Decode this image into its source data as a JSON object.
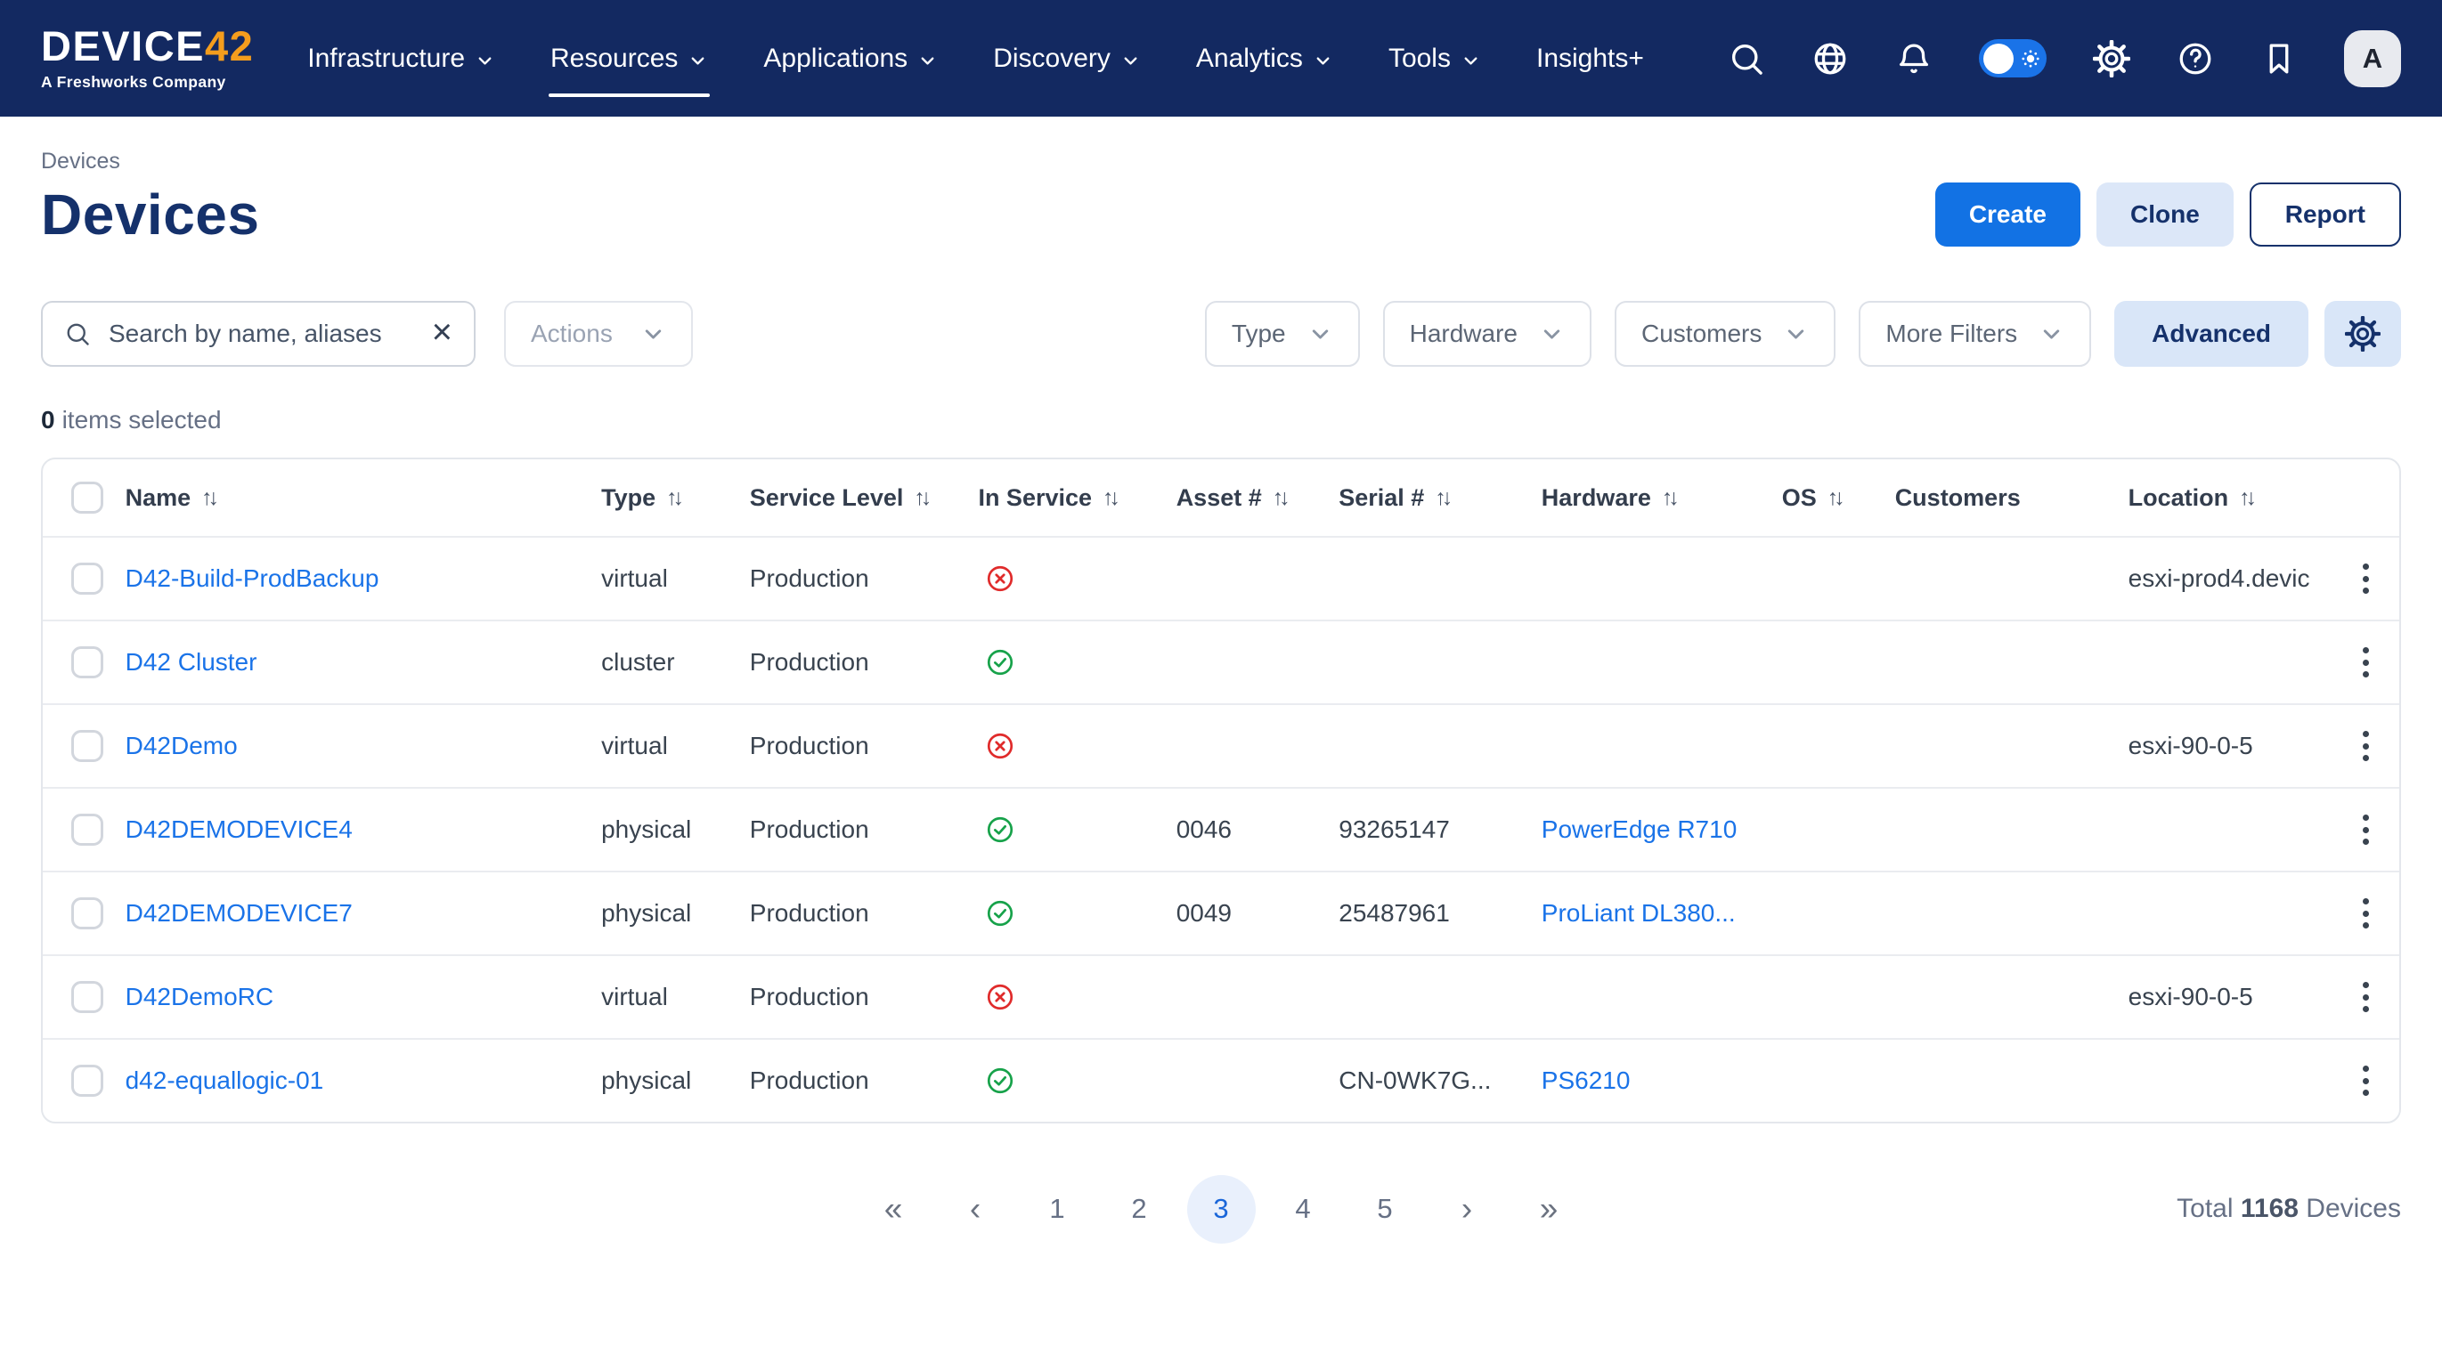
{
  "nav": {
    "brand": {
      "name": "DEVIC",
      "name2": "E",
      "accent": "42",
      "tagline": "A Freshworks Company"
    },
    "items": [
      {
        "label": "Infrastructure",
        "caret": true,
        "active": false
      },
      {
        "label": "Resources",
        "caret": true,
        "active": true
      },
      {
        "label": "Applications",
        "caret": true,
        "active": false
      },
      {
        "label": "Discovery",
        "caret": true,
        "active": false
      },
      {
        "label": "Analytics",
        "caret": true,
        "active": false
      },
      {
        "label": "Tools",
        "caret": true,
        "active": false
      },
      {
        "label": "Insights+",
        "caret": false,
        "active": false
      }
    ],
    "icons": [
      "search-icon",
      "globe-icon",
      "notifications-icon",
      "theme-toggle",
      "settings-icon",
      "help-icon",
      "bookmark-icon"
    ],
    "avatar": "A"
  },
  "breadcrumb": "Devices",
  "page": {
    "title": "Devices"
  },
  "actions": {
    "create": "Create",
    "clone": "Clone",
    "report": "Report"
  },
  "toolbar": {
    "search_placeholder": "Search by name, aliases",
    "actions_label": "Actions",
    "filters": [
      "Type",
      "Hardware",
      "Customers",
      "More Filters"
    ],
    "advanced_label": "Advanced"
  },
  "selection": {
    "count": "0",
    "label": "items selected"
  },
  "table": {
    "columns": [
      {
        "key": "name",
        "label": "Name",
        "sortable": true
      },
      {
        "key": "type",
        "label": "Type",
        "sortable": true
      },
      {
        "key": "service_level",
        "label": "Service Level",
        "sortable": true
      },
      {
        "key": "in_service",
        "label": "In Service",
        "sortable": true
      },
      {
        "key": "asset",
        "label": "Asset #",
        "sortable": true
      },
      {
        "key": "serial",
        "label": "Serial #",
        "sortable": true
      },
      {
        "key": "hardware",
        "label": "Hardware",
        "sortable": true
      },
      {
        "key": "os",
        "label": "OS",
        "sortable": true
      },
      {
        "key": "customers",
        "label": "Customers",
        "sortable": false
      },
      {
        "key": "location",
        "label": "Location",
        "sortable": true
      }
    ],
    "rows": [
      {
        "name": "D42-Build-ProdBackup",
        "type": "virtual",
        "service_level": "Production",
        "in_service": false,
        "asset": "",
        "serial": "",
        "hardware": "",
        "os": "",
        "customers": "",
        "location": "esxi-prod4.devic"
      },
      {
        "name": "D42 Cluster",
        "type": "cluster",
        "service_level": "Production",
        "in_service": true,
        "asset": "",
        "serial": "",
        "hardware": "",
        "os": "",
        "customers": "",
        "location": ""
      },
      {
        "name": "D42Demo",
        "type": "virtual",
        "service_level": "Production",
        "in_service": false,
        "asset": "",
        "serial": "",
        "hardware": "",
        "os": "",
        "customers": "",
        "location": "esxi-90-0-5"
      },
      {
        "name": "D42DEMODEVICE4",
        "type": "physical",
        "service_level": "Production",
        "in_service": true,
        "asset": "0046",
        "serial": "93265147",
        "hardware": "PowerEdge R710",
        "os": "",
        "customers": "",
        "location": ""
      },
      {
        "name": "D42DEMODEVICE7",
        "type": "physical",
        "service_level": "Production",
        "in_service": true,
        "asset": "0049",
        "serial": "25487961",
        "hardware": "ProLiant DL380...",
        "os": "",
        "customers": "",
        "location": ""
      },
      {
        "name": "D42DemoRC",
        "type": "virtual",
        "service_level": "Production",
        "in_service": false,
        "asset": "",
        "serial": "",
        "hardware": "",
        "os": "",
        "customers": "",
        "location": "esxi-90-0-5"
      },
      {
        "name": "d42-equallogic-01",
        "type": "physical",
        "service_level": "Production",
        "in_service": true,
        "asset": "",
        "serial": "CN-0WK7G...",
        "hardware": "PS6210",
        "os": "",
        "customers": "",
        "location": ""
      }
    ]
  },
  "pagination": {
    "first": "«",
    "prev": "‹",
    "pages": [
      "1",
      "2",
      "3",
      "4",
      "5"
    ],
    "active": "3",
    "next": "›",
    "last": "»"
  },
  "footer": {
    "total_prefix": "Total",
    "total_count": "1168",
    "total_suffix": "Devices"
  },
  "colors": {
    "navbar": "#132961",
    "brand_accent": "#F49D1D",
    "primary_blue": "#1272E4",
    "link_blue": "#1A73E8",
    "navy": "#15316B",
    "soft_blue": "#DCE7F8",
    "status_green": "#17A24A",
    "status_red": "#E02B2B",
    "toggle_blue": "#1A73E8"
  }
}
